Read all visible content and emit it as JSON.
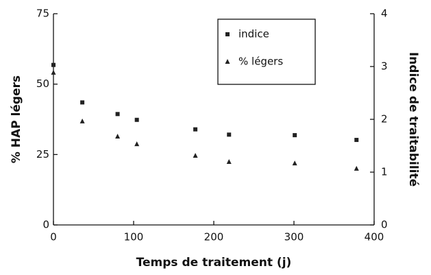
{
  "chart_data": {
    "type": "scatter",
    "x_label": "Temps de traitement (j)",
    "y_label": "% HAP légers",
    "y2_label": "Indice de traitabilité",
    "x": [
      0,
      36,
      80,
      104,
      177,
      219,
      301,
      378
    ],
    "series": [
      {
        "name": "indice",
        "color": "#222222",
        "marker": "square",
        "axis": "y2",
        "values": [
          3.03,
          2.32,
          2.1,
          1.99,
          1.81,
          1.71,
          1.7,
          1.61
        ]
      },
      {
        "name": "% légers",
        "color": "#222222",
        "marker": "triangle",
        "values": [
          54.1,
          36.8,
          31.4,
          28.7,
          24.6,
          22.4,
          21.9,
          20.0
        ]
      }
    ],
    "xlim": [
      0,
      400
    ],
    "xticks": [
      0,
      100,
      200,
      300,
      400
    ],
    "ylim": [
      0,
      75
    ],
    "yticks": [
      0,
      25,
      50,
      75
    ],
    "y2lim": [
      0,
      4
    ],
    "y2ticks": [
      0,
      1,
      2,
      3,
      4
    ],
    "legend": "top-right"
  }
}
